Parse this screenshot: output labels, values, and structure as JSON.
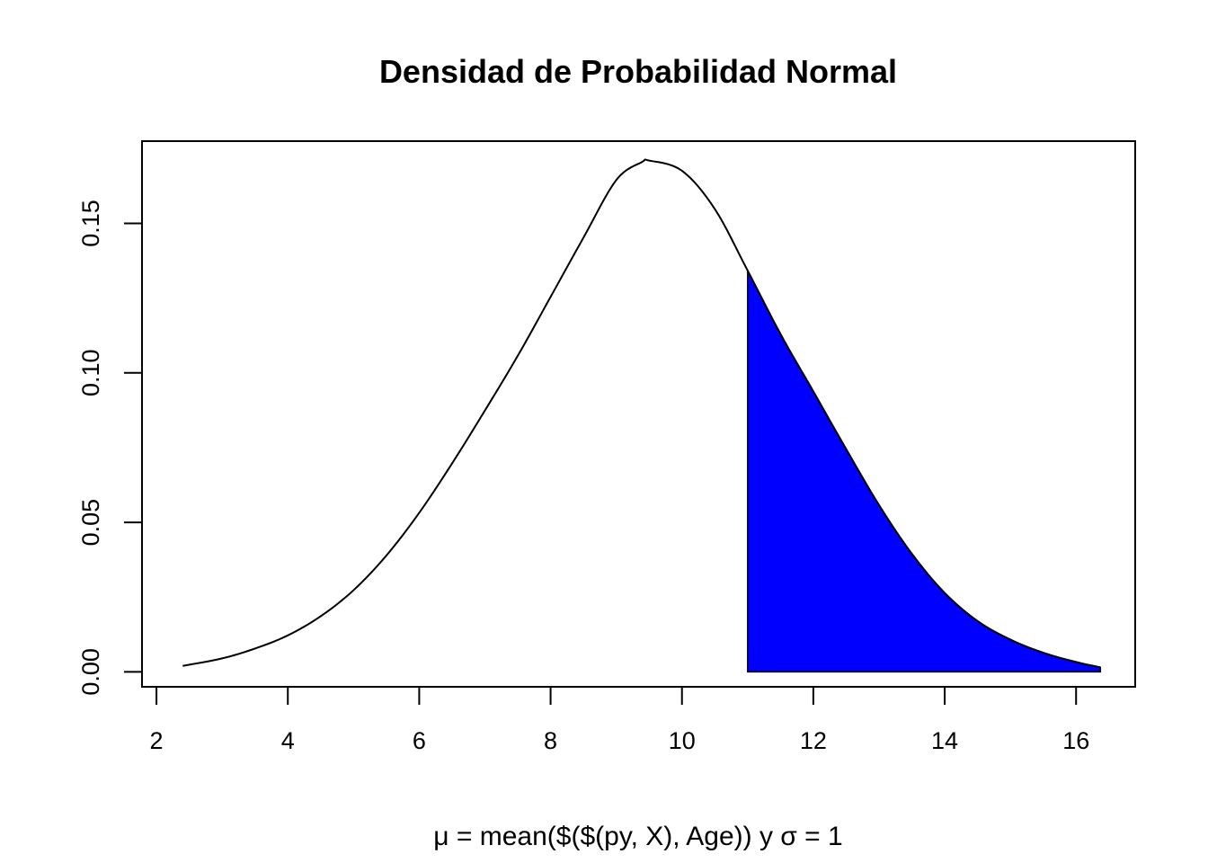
{
  "chart_data": {
    "type": "area",
    "title": "Densidad de Probabilidad Normal",
    "xlabel": "μ = mean($($(py, X), Age)) y σ = 1",
    "ylabel": "",
    "xlim": [
      1.78,
      16.9
    ],
    "ylim": [
      -0.005,
      0.1775
    ],
    "x_ticks": [
      2,
      4,
      6,
      8,
      10,
      12,
      14,
      16
    ],
    "x_tick_labels": [
      "2",
      "4",
      "6",
      "8",
      "10",
      "12",
      "14",
      "16"
    ],
    "y_ticks": [
      0.0,
      0.05,
      0.1,
      0.15
    ],
    "y_tick_labels": [
      "0.00",
      "0.05",
      "0.10",
      "0.15"
    ],
    "series": [
      {
        "type": "line",
        "x_range": [
          2.4,
          16.37
        ],
        "values": [
          [
            2.4,
            0.002
          ],
          [
            3.0,
            0.0045
          ],
          [
            3.5,
            0.0078
          ],
          [
            4.0,
            0.0122
          ],
          [
            4.5,
            0.0186
          ],
          [
            5.0,
            0.0273
          ],
          [
            5.5,
            0.0389
          ],
          [
            6.0,
            0.0532
          ],
          [
            6.5,
            0.0697
          ],
          [
            7.0,
            0.0874
          ],
          [
            7.5,
            0.1057
          ],
          [
            8.0,
            0.1254
          ],
          [
            8.5,
            0.1452
          ],
          [
            9.0,
            0.1645
          ],
          [
            9.39,
            0.1705
          ],
          [
            9.5,
            0.171
          ],
          [
            10.0,
            0.1676
          ],
          [
            10.5,
            0.1548
          ],
          [
            11.0,
            0.1342
          ],
          [
            11.5,
            0.113
          ],
          [
            12.0,
            0.0938
          ],
          [
            12.5,
            0.0745
          ],
          [
            13.0,
            0.0558
          ],
          [
            13.5,
            0.0395
          ],
          [
            14.0,
            0.0264
          ],
          [
            14.5,
            0.017
          ],
          [
            15.0,
            0.0108
          ],
          [
            15.5,
            0.0064
          ],
          [
            16.0,
            0.0033
          ],
          [
            16.37,
            0.0015
          ]
        ]
      }
    ],
    "shaded_region": {
      "from_x": 11.0,
      "to_x": 16.37,
      "color": "#0000ff"
    },
    "grid": false,
    "colors": {
      "line": "#000000",
      "fill": "#0000ff"
    }
  }
}
